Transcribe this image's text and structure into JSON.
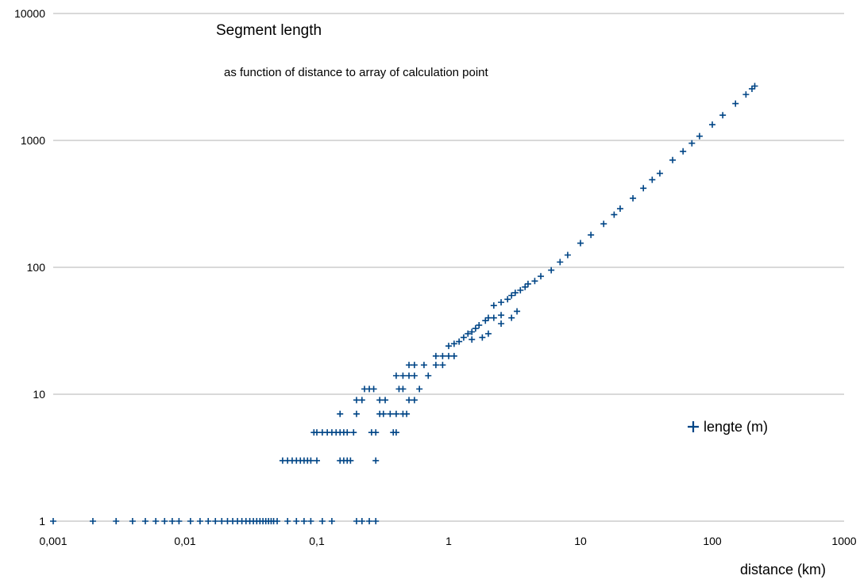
{
  "chart_data": {
    "type": "scatter",
    "title": "Segment length",
    "subtitle": "as function of distance to array of calculation point",
    "xlabel": "distance (km)",
    "ylabel": "",
    "x_scale": "log",
    "y_scale": "log",
    "xlim": [
      0.001,
      1000
    ],
    "ylim": [
      1,
      10000
    ],
    "x_ticks": [
      "0,001",
      "0,01",
      "0,1",
      "1",
      "10",
      "100",
      "1000"
    ],
    "y_ticks": [
      "1",
      "10",
      "100",
      "1000",
      "10000"
    ],
    "grid": "horizontal major",
    "legend": {
      "position": "right",
      "entries": [
        "lengte (m)"
      ]
    },
    "series": [
      {
        "name": "lengte (m)",
        "color": "#004586",
        "marker": "plus",
        "points": [
          [
            0.001,
            1
          ],
          [
            0.002,
            1
          ],
          [
            0.003,
            1
          ],
          [
            0.004,
            1
          ],
          [
            0.005,
            1
          ],
          [
            0.006,
            1
          ],
          [
            0.007,
            1
          ],
          [
            0.008,
            1
          ],
          [
            0.009,
            1
          ],
          [
            0.011,
            1
          ],
          [
            0.013,
            1
          ],
          [
            0.015,
            1
          ],
          [
            0.017,
            1
          ],
          [
            0.019,
            1
          ],
          [
            0.021,
            1
          ],
          [
            0.023,
            1
          ],
          [
            0.025,
            1
          ],
          [
            0.027,
            1
          ],
          [
            0.029,
            1
          ],
          [
            0.031,
            1
          ],
          [
            0.033,
            1
          ],
          [
            0.035,
            1
          ],
          [
            0.037,
            1
          ],
          [
            0.039,
            1
          ],
          [
            0.041,
            1
          ],
          [
            0.043,
            1
          ],
          [
            0.045,
            1
          ],
          [
            0.047,
            1
          ],
          [
            0.05,
            1
          ],
          [
            0.06,
            1
          ],
          [
            0.07,
            1
          ],
          [
            0.08,
            1
          ],
          [
            0.09,
            1
          ],
          [
            0.11,
            1
          ],
          [
            0.13,
            1
          ],
          [
            0.2,
            1
          ],
          [
            0.22,
            1
          ],
          [
            0.25,
            1
          ],
          [
            0.28,
            1
          ],
          [
            0.055,
            3
          ],
          [
            0.06,
            3
          ],
          [
            0.065,
            3
          ],
          [
            0.07,
            3
          ],
          [
            0.075,
            3
          ],
          [
            0.08,
            3
          ],
          [
            0.085,
            3
          ],
          [
            0.09,
            3
          ],
          [
            0.1,
            3
          ],
          [
            0.15,
            3
          ],
          [
            0.16,
            3
          ],
          [
            0.17,
            3
          ],
          [
            0.18,
            3
          ],
          [
            0.28,
            3
          ],
          [
            0.095,
            5
          ],
          [
            0.1,
            5
          ],
          [
            0.11,
            5
          ],
          [
            0.12,
            5
          ],
          [
            0.13,
            5
          ],
          [
            0.14,
            5
          ],
          [
            0.15,
            5
          ],
          [
            0.16,
            5
          ],
          [
            0.17,
            5
          ],
          [
            0.19,
            5
          ],
          [
            0.26,
            5
          ],
          [
            0.28,
            5
          ],
          [
            0.38,
            5
          ],
          [
            0.4,
            5
          ],
          [
            0.15,
            7
          ],
          [
            0.2,
            7
          ],
          [
            0.3,
            7
          ],
          [
            0.32,
            7
          ],
          [
            0.36,
            7
          ],
          [
            0.4,
            7
          ],
          [
            0.45,
            7
          ],
          [
            0.48,
            7
          ],
          [
            0.2,
            9
          ],
          [
            0.22,
            9
          ],
          [
            0.3,
            9
          ],
          [
            0.33,
            9
          ],
          [
            0.5,
            9
          ],
          [
            0.55,
            9
          ],
          [
            0.23,
            11
          ],
          [
            0.25,
            11
          ],
          [
            0.27,
            11
          ],
          [
            0.42,
            11
          ],
          [
            0.45,
            11
          ],
          [
            0.6,
            11
          ],
          [
            0.4,
            14
          ],
          [
            0.45,
            14
          ],
          [
            0.5,
            14
          ],
          [
            0.55,
            14
          ],
          [
            0.7,
            14
          ],
          [
            0.5,
            17
          ],
          [
            0.55,
            17
          ],
          [
            0.65,
            17
          ],
          [
            0.8,
            17
          ],
          [
            0.9,
            17
          ],
          [
            0.8,
            20
          ],
          [
            0.9,
            20
          ],
          [
            1.0,
            20
          ],
          [
            1.1,
            20
          ],
          [
            1.0,
            24
          ],
          [
            1.1,
            25
          ],
          [
            1.2,
            26
          ],
          [
            1.3,
            28
          ],
          [
            1.4,
            30
          ],
          [
            1.5,
            31
          ],
          [
            1.6,
            33
          ],
          [
            1.7,
            35
          ],
          [
            1.9,
            38
          ],
          [
            2.0,
            40
          ],
          [
            2.2,
            40
          ],
          [
            2.5,
            42
          ],
          [
            1.5,
            27
          ],
          [
            1.8,
            28
          ],
          [
            2.0,
            30
          ],
          [
            2.5,
            36
          ],
          [
            3.0,
            40
          ],
          [
            3.3,
            45
          ],
          [
            2.2,
            50
          ],
          [
            2.5,
            53
          ],
          [
            2.8,
            56
          ],
          [
            3.0,
            60
          ],
          [
            3.2,
            63
          ],
          [
            3.5,
            66
          ],
          [
            3.8,
            70
          ],
          [
            4.0,
            74
          ],
          [
            4.5,
            78
          ],
          [
            5,
            85
          ],
          [
            6,
            95
          ],
          [
            7,
            110
          ],
          [
            8,
            125
          ],
          [
            10,
            155
          ],
          [
            12,
            180
          ],
          [
            15,
            220
          ],
          [
            18,
            260
          ],
          [
            20,
            290
          ],
          [
            25,
            350
          ],
          [
            30,
            420
          ],
          [
            35,
            490
          ],
          [
            40,
            550
          ],
          [
            50,
            700
          ],
          [
            60,
            820
          ],
          [
            70,
            950
          ],
          [
            80,
            1080
          ],
          [
            100,
            1330
          ],
          [
            120,
            1580
          ],
          [
            150,
            1950
          ],
          [
            180,
            2300
          ],
          [
            200,
            2550
          ],
          [
            210,
            2680
          ]
        ]
      }
    ]
  }
}
